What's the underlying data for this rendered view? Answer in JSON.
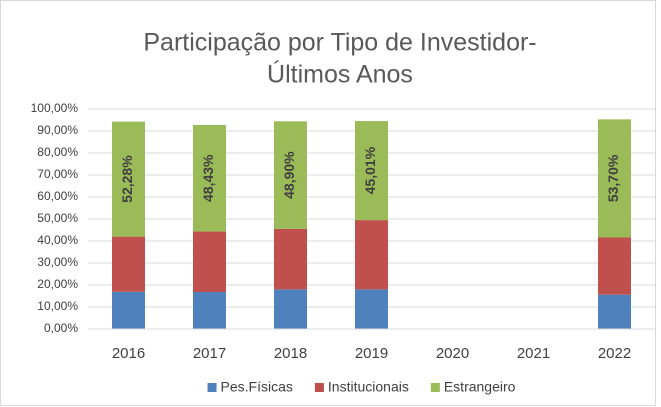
{
  "chart_data": {
    "type": "stacked-bar",
    "title": [
      "Participação por Tipo de Investidor-",
      "Últimos Anos"
    ],
    "categories": [
      "2016",
      "2017",
      "2018",
      "2019",
      "2020",
      "2021",
      "2022"
    ],
    "series": [
      {
        "name": "Pes.Físicas",
        "color": "#4f81bd",
        "values": [
          16.9,
          16.8,
          18,
          18,
          null,
          null,
          15.6
        ]
      },
      {
        "name": "Institucionais",
        "color": "#c0504d",
        "values": [
          25.1,
          27.5,
          27.5,
          31.5,
          null,
          null,
          26
        ]
      },
      {
        "name": "Estrangeiro",
        "color": "#9bbb59",
        "values": [
          52.28,
          48.43,
          48.9,
          45.01,
          null,
          null,
          53.7
        ],
        "value_labels": [
          "52,28%",
          "48,43%",
          "48,90%",
          "45,01%",
          null,
          null,
          "53,70%"
        ]
      }
    ],
    "ylim": [
      0,
      100
    ],
    "yticks": [
      {
        "value": 0,
        "label": "0,00%"
      },
      {
        "value": 10,
        "label": "10,00%"
      },
      {
        "value": 20,
        "label": "20,00%"
      },
      {
        "value": 30,
        "label": "30,00%"
      },
      {
        "value": 40,
        "label": "40,00%"
      },
      {
        "value": 50,
        "label": "50,00%"
      },
      {
        "value": 60,
        "label": "60,00%"
      },
      {
        "value": 70,
        "label": "70,00%"
      },
      {
        "value": 80,
        "label": "80,00%"
      },
      {
        "value": 90,
        "label": "90,00%"
      },
      {
        "value": 100,
        "label": "100,00%"
      }
    ],
    "grid": true,
    "legend": "bottom"
  }
}
